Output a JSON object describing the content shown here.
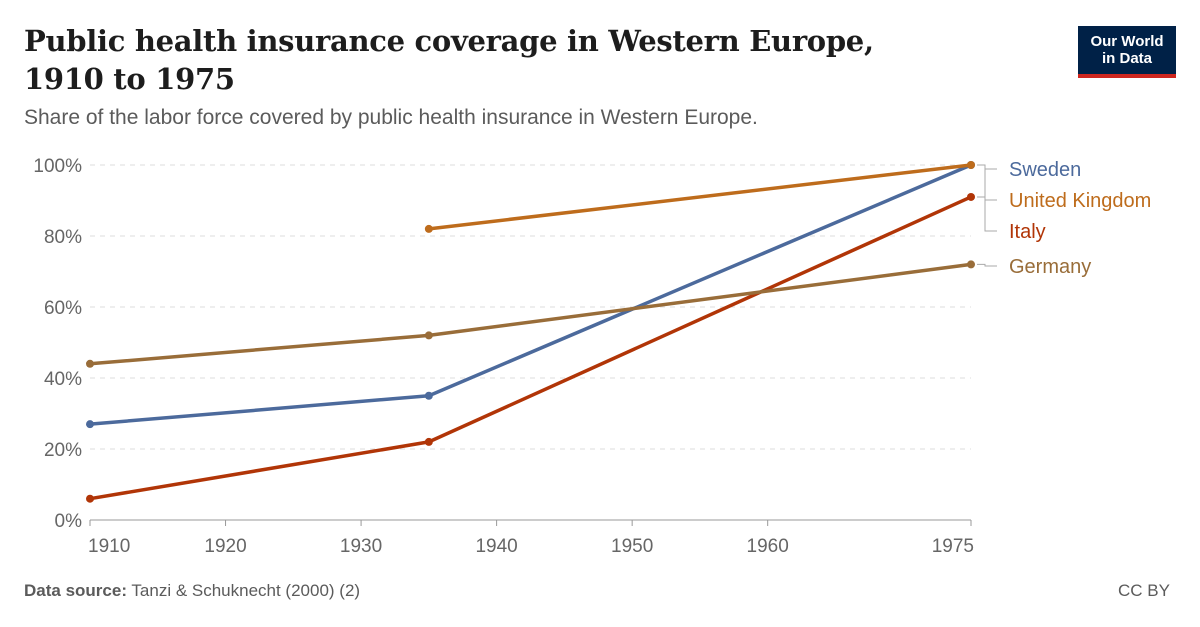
{
  "header": {
    "title": "Public health insurance coverage in Western Europe, 1910 to 1975",
    "subtitle": "Share of the labor force covered by public health insurance in Western Europe."
  },
  "logo": {
    "line1": "Our World",
    "line2": "in Data"
  },
  "footer": {
    "source_label": "Data source:",
    "source_text": "Tanzi & Schuknecht (2000) (2)",
    "license": "CC BY"
  },
  "chart_data": {
    "type": "line",
    "title": "Public health insurance coverage in Western Europe, 1910 to 1975",
    "xlabel": "",
    "ylabel": "",
    "xlim": [
      1910,
      1975
    ],
    "ylim": [
      0,
      100
    ],
    "x_ticks": [
      1910,
      1920,
      1930,
      1940,
      1950,
      1960,
      1975
    ],
    "y_ticks": [
      0,
      20,
      40,
      60,
      80,
      100
    ],
    "y_tick_labels": [
      "0%",
      "20%",
      "40%",
      "60%",
      "80%",
      "100%"
    ],
    "grid": "horizontal dashed",
    "legend": "right, labels at line ends",
    "series": [
      {
        "name": "Sweden",
        "color": "#4c6a9c",
        "points": [
          [
            1910,
            27
          ],
          [
            1935,
            35
          ],
          [
            1975,
            100
          ]
        ]
      },
      {
        "name": "United Kingdom",
        "color": "#be6c1c",
        "points": [
          [
            1935,
            82
          ],
          [
            1975,
            100
          ]
        ]
      },
      {
        "name": "Italy",
        "color": "#b13507",
        "points": [
          [
            1910,
            6
          ],
          [
            1935,
            22
          ],
          [
            1975,
            91
          ]
        ]
      },
      {
        "name": "Germany",
        "color": "#996d39",
        "points": [
          [
            1910,
            44
          ],
          [
            1935,
            52
          ],
          [
            1975,
            72
          ]
        ]
      }
    ]
  }
}
